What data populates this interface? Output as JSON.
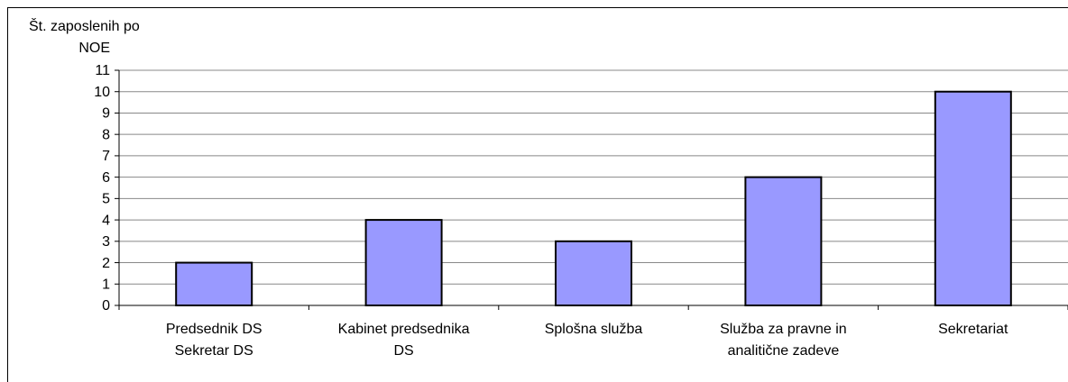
{
  "chart_data": {
    "type": "bar",
    "ylabel": [
      "Št. zaposlenih  po",
      "NOE"
    ],
    "categories": [
      "Predsednik DS\nSekretar DS",
      "Kabinet predsednika\nDS",
      "Splošna služba",
      "Služba za pravne in\nanalitične zadeve",
      "Sekretariat"
    ],
    "values": [
      2,
      4,
      3,
      6,
      10
    ],
    "color": "#9999ff",
    "ylim": [
      0,
      11
    ],
    "yticks": [
      0,
      1,
      2,
      3,
      4,
      5,
      6,
      7,
      8,
      9,
      10,
      11
    ],
    "grid": true
  }
}
